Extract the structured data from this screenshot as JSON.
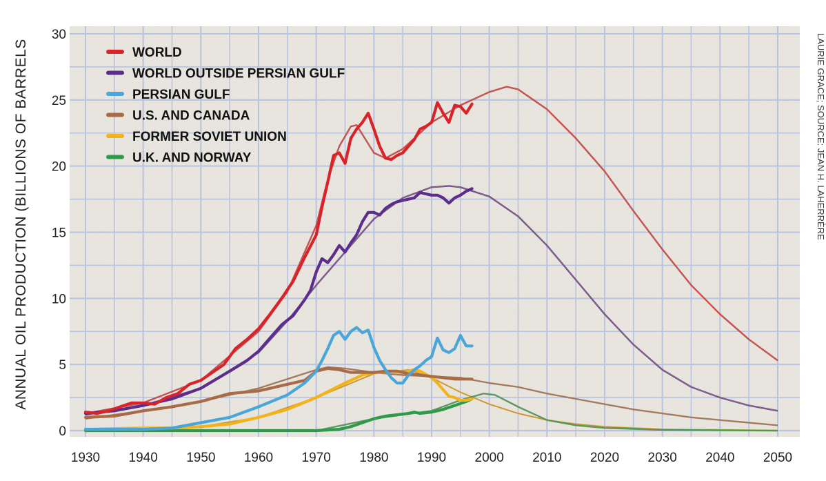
{
  "chart_data": {
    "type": "line",
    "ylabel": "ANNUAL OIL PRODUCTION (BILLIONS OF BARRELS",
    "xlabel": "",
    "xlim": [
      1930,
      2052
    ],
    "ylim": [
      0,
      30
    ],
    "x_ticks": [
      "1930",
      "1940",
      "1950",
      "1960",
      "1970",
      "1980",
      "1990",
      "2000",
      "2010",
      "2020",
      "2030",
      "2040",
      "2050"
    ],
    "y_ticks": [
      "0",
      "5",
      "10",
      "15",
      "20",
      "25",
      "30"
    ],
    "grid": true,
    "legend_position": "top-left",
    "credit": "LAURIE GRACE; SOURCE: JEAN H. LAHERRÈRE",
    "background_color": "#ece9e2",
    "grid_color": "#b9c2df",
    "series": [
      {
        "name": "WORLD",
        "color": "#d8232a",
        "actual": [
          [
            1930,
            1.4
          ],
          [
            1932,
            1.3
          ],
          [
            1934,
            1.5
          ],
          [
            1936,
            1.8
          ],
          [
            1938,
            2.1
          ],
          [
            1940,
            2.1
          ],
          [
            1942,
            2.0
          ],
          [
            1944,
            2.5
          ],
          [
            1946,
            2.8
          ],
          [
            1948,
            3.5
          ],
          [
            1950,
            3.8
          ],
          [
            1952,
            4.4
          ],
          [
            1954,
            5.0
          ],
          [
            1956,
            6.2
          ],
          [
            1958,
            6.9
          ],
          [
            1960,
            7.7
          ],
          [
            1962,
            8.8
          ],
          [
            1964,
            10.0
          ],
          [
            1966,
            11.3
          ],
          [
            1968,
            13.1
          ],
          [
            1970,
            14.8
          ],
          [
            1971,
            16.9
          ],
          [
            1972,
            18.8
          ],
          [
            1973,
            20.8
          ],
          [
            1974,
            21.0
          ],
          [
            1975,
            20.2
          ],
          [
            1976,
            22.1
          ],
          [
            1977,
            22.8
          ],
          [
            1978,
            23.3
          ],
          [
            1979,
            24.0
          ],
          [
            1980,
            22.8
          ],
          [
            1981,
            21.5
          ],
          [
            1982,
            20.6
          ],
          [
            1983,
            20.5
          ],
          [
            1984,
            20.8
          ],
          [
            1985,
            21.0
          ],
          [
            1986,
            21.5
          ],
          [
            1987,
            22.0
          ],
          [
            1988,
            22.8
          ],
          [
            1989,
            23.0
          ],
          [
            1990,
            23.3
          ],
          [
            1991,
            24.8
          ],
          [
            1992,
            24.0
          ],
          [
            1993,
            23.3
          ],
          [
            1994,
            24.6
          ],
          [
            1995,
            24.5
          ],
          [
            1996,
            24.0
          ],
          [
            1997,
            24.7
          ]
        ],
        "model": [
          [
            1930,
            1.3
          ],
          [
            1940,
            2.1
          ],
          [
            1950,
            3.8
          ],
          [
            1960,
            7.5
          ],
          [
            1965,
            10.5
          ],
          [
            1970,
            15.5
          ],
          [
            1972,
            19.0
          ],
          [
            1974,
            21.5
          ],
          [
            1976,
            23.0
          ],
          [
            1977,
            23.1
          ],
          [
            1978,
            22.4
          ],
          [
            1980,
            21.0
          ],
          [
            1982,
            20.6
          ],
          [
            1985,
            21.3
          ],
          [
            1990,
            23.3
          ],
          [
            1995,
            24.6
          ],
          [
            2000,
            25.6
          ],
          [
            2003,
            26.0
          ],
          [
            2005,
            25.8
          ],
          [
            2010,
            24.3
          ],
          [
            2015,
            22.1
          ],
          [
            2020,
            19.6
          ],
          [
            2025,
            16.6
          ],
          [
            2030,
            13.7
          ],
          [
            2035,
            11.0
          ],
          [
            2040,
            8.8
          ],
          [
            2045,
            6.9
          ],
          [
            2050,
            5.3
          ]
        ]
      },
      {
        "name": "WORLD OUTSIDE PERSIAN GULF",
        "color": "#5c2d8a",
        "actual": [
          [
            1930,
            1.3
          ],
          [
            1935,
            1.5
          ],
          [
            1940,
            1.9
          ],
          [
            1945,
            2.4
          ],
          [
            1950,
            3.2
          ],
          [
            1955,
            4.5
          ],
          [
            1958,
            5.3
          ],
          [
            1960,
            6.0
          ],
          [
            1962,
            7.0
          ],
          [
            1964,
            8.0
          ],
          [
            1966,
            8.7
          ],
          [
            1968,
            9.9
          ],
          [
            1969,
            10.6
          ],
          [
            1970,
            12.0
          ],
          [
            1971,
            13.0
          ],
          [
            1972,
            12.7
          ],
          [
            1973,
            13.3
          ],
          [
            1974,
            14.0
          ],
          [
            1975,
            13.5
          ],
          [
            1976,
            14.2
          ],
          [
            1977,
            14.8
          ],
          [
            1978,
            15.8
          ],
          [
            1979,
            16.5
          ],
          [
            1980,
            16.5
          ],
          [
            1981,
            16.3
          ],
          [
            1982,
            16.8
          ],
          [
            1983,
            17.1
          ],
          [
            1984,
            17.3
          ],
          [
            1985,
            17.4
          ],
          [
            1986,
            17.5
          ],
          [
            1987,
            17.6
          ],
          [
            1988,
            18.0
          ],
          [
            1989,
            17.9
          ],
          [
            1990,
            17.8
          ],
          [
            1991,
            17.8
          ],
          [
            1992,
            17.6
          ],
          [
            1993,
            17.2
          ],
          [
            1994,
            17.6
          ],
          [
            1995,
            17.8
          ],
          [
            1996,
            18.1
          ],
          [
            1997,
            18.3
          ]
        ],
        "model": [
          [
            1930,
            1.2
          ],
          [
            1940,
            1.9
          ],
          [
            1950,
            3.2
          ],
          [
            1960,
            5.9
          ],
          [
            1965,
            8.3
          ],
          [
            1970,
            11.0
          ],
          [
            1975,
            13.5
          ],
          [
            1980,
            16.0
          ],
          [
            1985,
            17.6
          ],
          [
            1990,
            18.4
          ],
          [
            1993,
            18.5
          ],
          [
            1995,
            18.4
          ],
          [
            2000,
            17.7
          ],
          [
            2005,
            16.2
          ],
          [
            2010,
            14.0
          ],
          [
            2015,
            11.4
          ],
          [
            2020,
            8.8
          ],
          [
            2025,
            6.5
          ],
          [
            2030,
            4.6
          ],
          [
            2035,
            3.3
          ],
          [
            2040,
            2.5
          ],
          [
            2045,
            1.9
          ],
          [
            2050,
            1.5
          ]
        ]
      },
      {
        "name": "PERSIAN GULF",
        "color": "#4aa6d8",
        "actual": [
          [
            1930,
            0.1
          ],
          [
            1940,
            0.1
          ],
          [
            1945,
            0.2
          ],
          [
            1950,
            0.6
          ],
          [
            1955,
            1.0
          ],
          [
            1960,
            1.8
          ],
          [
            1965,
            2.7
          ],
          [
            1968,
            3.6
          ],
          [
            1970,
            4.5
          ],
          [
            1971,
            5.3
          ],
          [
            1972,
            6.2
          ],
          [
            1973,
            7.2
          ],
          [
            1974,
            7.5
          ],
          [
            1975,
            6.9
          ],
          [
            1976,
            7.5
          ],
          [
            1977,
            7.8
          ],
          [
            1978,
            7.4
          ],
          [
            1979,
            7.6
          ],
          [
            1980,
            6.3
          ],
          [
            1981,
            5.3
          ],
          [
            1982,
            4.6
          ],
          [
            1983,
            4.0
          ],
          [
            1984,
            3.6
          ],
          [
            1985,
            3.6
          ],
          [
            1986,
            4.2
          ],
          [
            1987,
            4.6
          ],
          [
            1988,
            4.9
          ],
          [
            1989,
            5.3
          ],
          [
            1990,
            5.6
          ],
          [
            1991,
            7.0
          ],
          [
            1992,
            6.1
          ],
          [
            1993,
            5.9
          ],
          [
            1994,
            6.2
          ],
          [
            1995,
            7.2
          ],
          [
            1996,
            6.4
          ],
          [
            1997,
            6.4
          ]
        ],
        "model": []
      },
      {
        "name": "U.S. AND CANADA",
        "color": "#a86b48",
        "actual": [
          [
            1930,
            1.0
          ],
          [
            1935,
            1.1
          ],
          [
            1940,
            1.5
          ],
          [
            1945,
            1.8
          ],
          [
            1950,
            2.2
          ],
          [
            1955,
            2.8
          ],
          [
            1960,
            3.0
          ],
          [
            1965,
            3.5
          ],
          [
            1968,
            3.8
          ],
          [
            1970,
            4.5
          ],
          [
            1972,
            4.7
          ],
          [
            1974,
            4.6
          ],
          [
            1976,
            4.4
          ],
          [
            1978,
            4.4
          ],
          [
            1980,
            4.4
          ],
          [
            1982,
            4.5
          ],
          [
            1984,
            4.5
          ],
          [
            1986,
            4.3
          ],
          [
            1988,
            4.2
          ],
          [
            1990,
            4.1
          ],
          [
            1992,
            4.0
          ],
          [
            1994,
            3.9
          ],
          [
            1996,
            3.9
          ],
          [
            1997,
            3.9
          ]
        ],
        "model": [
          [
            1930,
            0.9
          ],
          [
            1940,
            1.5
          ],
          [
            1950,
            2.2
          ],
          [
            1960,
            3.2
          ],
          [
            1970,
            4.6
          ],
          [
            1972,
            4.8
          ],
          [
            1975,
            4.7
          ],
          [
            1980,
            4.4
          ],
          [
            1985,
            4.2
          ],
          [
            1990,
            4.1
          ],
          [
            1995,
            4.0
          ],
          [
            2000,
            3.6
          ],
          [
            2005,
            3.3
          ],
          [
            2010,
            2.8
          ],
          [
            2015,
            2.4
          ],
          [
            2020,
            2.0
          ],
          [
            2025,
            1.6
          ],
          [
            2030,
            1.3
          ],
          [
            2035,
            1.0
          ],
          [
            2040,
            0.8
          ],
          [
            2045,
            0.6
          ],
          [
            2050,
            0.4
          ]
        ]
      },
      {
        "name": "FORMER SOVIET UNION",
        "color": "#f2b21c",
        "actual": [
          [
            1930,
            0.1
          ],
          [
            1940,
            0.2
          ],
          [
            1945,
            0.2
          ],
          [
            1950,
            0.3
          ],
          [
            1955,
            0.5
          ],
          [
            1960,
            1.0
          ],
          [
            1965,
            1.6
          ],
          [
            1970,
            2.5
          ],
          [
            1975,
            3.6
          ],
          [
            1978,
            4.2
          ],
          [
            1980,
            4.4
          ],
          [
            1983,
            4.5
          ],
          [
            1985,
            4.4
          ],
          [
            1987,
            4.6
          ],
          [
            1988,
            4.5
          ],
          [
            1990,
            4.0
          ],
          [
            1991,
            3.6
          ],
          [
            1992,
            3.1
          ],
          [
            1993,
            2.6
          ],
          [
            1994,
            2.5
          ],
          [
            1995,
            2.3
          ],
          [
            1996,
            2.3
          ],
          [
            1997,
            2.4
          ]
        ],
        "model": [
          [
            1930,
            0.1
          ],
          [
            1950,
            0.3
          ],
          [
            1960,
            1.0
          ],
          [
            1970,
            2.5
          ],
          [
            1980,
            4.3
          ],
          [
            1986,
            4.6
          ],
          [
            1990,
            4.0
          ],
          [
            1995,
            2.9
          ],
          [
            2000,
            2.0
          ],
          [
            2005,
            1.3
          ],
          [
            2010,
            0.8
          ],
          [
            2015,
            0.5
          ],
          [
            2020,
            0.3
          ],
          [
            2030,
            0.1
          ],
          [
            2040,
            0.05
          ],
          [
            2050,
            0.0
          ]
        ]
      },
      {
        "name": "U.K. AND NORWAY",
        "color": "#2f9a4a",
        "actual": [
          [
            1930,
            0.0
          ],
          [
            1970,
            0.0
          ],
          [
            1974,
            0.1
          ],
          [
            1976,
            0.3
          ],
          [
            1978,
            0.6
          ],
          [
            1980,
            0.9
          ],
          [
            1982,
            1.1
          ],
          [
            1984,
            1.2
          ],
          [
            1986,
            1.3
          ],
          [
            1987,
            1.4
          ],
          [
            1988,
            1.3
          ],
          [
            1990,
            1.4
          ],
          [
            1992,
            1.6
          ],
          [
            1994,
            1.9
          ],
          [
            1996,
            2.2
          ],
          [
            1997,
            2.4
          ]
        ],
        "model": [
          [
            1930,
            0.0
          ],
          [
            1970,
            0.0
          ],
          [
            1980,
            0.9
          ],
          [
            1990,
            1.5
          ],
          [
            1995,
            2.3
          ],
          [
            1999,
            2.8
          ],
          [
            2001,
            2.7
          ],
          [
            2005,
            1.8
          ],
          [
            2010,
            0.8
          ],
          [
            2015,
            0.4
          ],
          [
            2020,
            0.2
          ],
          [
            2030,
            0.05
          ],
          [
            2050,
            0.0
          ]
        ]
      }
    ]
  }
}
